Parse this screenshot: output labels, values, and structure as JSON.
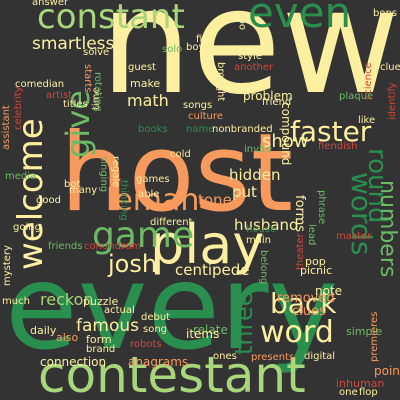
{
  "colors": {
    "background": "#333333",
    "cream": "#fdefa0",
    "orange": "#f89a5d",
    "green_dark": "#2a8e4e",
    "green_mid": "#6cbb64",
    "green_light": "#a8d67b",
    "yellow": "#e0e38a",
    "red": "#d2453a"
  },
  "words": [
    {
      "text": "new",
      "color": "#fdefa0",
      "rot": 0
    },
    {
      "text": "host",
      "color": "#f89a5d",
      "rot": 0
    },
    {
      "text": "every",
      "color": "#2a8e4e",
      "rot": 0
    },
    {
      "text": "contestant",
      "color": "#a8d67b",
      "rot": 0
    },
    {
      "text": "constant",
      "color": "#a8d67b",
      "rot": 0
    },
    {
      "text": "even",
      "color": "#2a8e4e",
      "rot": 0
    },
    {
      "text": "welcome",
      "color": "#fdefa0",
      "rot": -90
    },
    {
      "text": "play",
      "color": "#fdefa0",
      "rot": 0
    },
    {
      "text": "game",
      "color": "#6cbb64",
      "rot": 0
    },
    {
      "text": "give",
      "color": "#6cbb64",
      "rot": -90
    },
    {
      "text": "leman",
      "color": "#f89a5d",
      "rot": 0
    },
    {
      "text": "faster",
      "color": "#fdefa0",
      "rot": 0
    },
    {
      "text": "words",
      "color": "#2a8e4e",
      "rot": 90
    },
    {
      "text": "round",
      "color": "#2a8e4e",
      "rot": 90
    },
    {
      "text": "numbers",
      "color": "#6cbb64",
      "rot": 90
    },
    {
      "text": "back",
      "color": "#fdefa0",
      "rot": 0
    },
    {
      "text": "word",
      "color": "#fdefa0",
      "rot": 0
    },
    {
      "text": "three",
      "color": "#2a8e4e",
      "rot": -90
    },
    {
      "text": "josh",
      "color": "#fdefa0",
      "rot": 0
    },
    {
      "text": "smartless",
      "color": "#fdefa0",
      "rot": 0
    },
    {
      "text": "show",
      "color": "#fdefa0",
      "rot": 0
    },
    {
      "text": "math",
      "color": "#fdefa0",
      "rot": 0
    },
    {
      "text": "famous",
      "color": "#fdefa0",
      "rot": 0
    },
    {
      "text": "centipede",
      "color": "#fdefa0",
      "rot": 0
    },
    {
      "text": "hidden",
      "color": "#fdefa0",
      "rot": 0
    },
    {
      "text": "put",
      "color": "#fdefa0",
      "rot": 0
    },
    {
      "text": "husband",
      "color": "#fdefa0",
      "rot": 0
    },
    {
      "text": "tone",
      "color": "#f89a5d",
      "rot": 0
    },
    {
      "text": "forms",
      "color": "#fdefa0",
      "rot": 90
    },
    {
      "text": "compound",
      "color": "#fdefa0",
      "rot": 90
    },
    {
      "text": "problem",
      "color": "#fdefa0",
      "rot": 0
    },
    {
      "text": "reckon",
      "color": "#a8d67b",
      "rot": 0
    },
    {
      "text": "removed",
      "color": "#f89a5d",
      "rot": 0
    },
    {
      "text": "clues",
      "color": "#f89a5d",
      "rot": 0
    },
    {
      "text": "relate",
      "color": "#6cbb64",
      "rot": 0
    },
    {
      "text": "note",
      "color": "#fdefa0",
      "rot": 0
    },
    {
      "text": "items",
      "color": "#fdefa0",
      "rot": 0
    },
    {
      "text": "connection",
      "color": "#fdefa0",
      "rot": 0
    },
    {
      "text": "anagrams",
      "color": "#f89a5d",
      "rot": 0
    },
    {
      "text": "point",
      "color": "#f89a5d",
      "rot": 0
    },
    {
      "text": "simple",
      "color": "#6cbb64",
      "rot": 0
    },
    {
      "text": "make",
      "color": "#fdefa0",
      "rot": 0
    },
    {
      "text": "brought",
      "color": "#fdefa0",
      "rot": 90
    },
    {
      "text": "culture",
      "color": "#f89a5d",
      "rot": 0
    },
    {
      "text": "books",
      "color": "#2a8e4e",
      "rot": 0
    },
    {
      "text": "name",
      "color": "#2a8e4e",
      "rot": 0
    },
    {
      "text": "games",
      "color": "#fdefa0",
      "rot": 0
    },
    {
      "text": "able",
      "color": "#fdefa0",
      "rot": 0
    },
    {
      "text": "different",
      "color": "#fdefa0",
      "rot": 0
    },
    {
      "text": "friend",
      "color": "#fdefa0",
      "rot": 0
    },
    {
      "text": "nonbranded",
      "color": "#fdefa0",
      "rot": 0
    },
    {
      "text": "invite",
      "color": "#6cbb64",
      "rot": 0
    },
    {
      "text": "fiendish",
      "color": "#d2453a",
      "rot": 0
    },
    {
      "text": "house",
      "color": "#2a8e4e",
      "rot": 0
    },
    {
      "text": "main",
      "color": "#fdefa0",
      "rot": 0
    },
    {
      "text": "master",
      "color": "#d2453a",
      "rot": 0
    },
    {
      "text": "phrase",
      "color": "#6cbb64",
      "rot": 90
    },
    {
      "text": "lead",
      "color": "#6cbb64",
      "rot": 90
    },
    {
      "text": "theater",
      "color": "#d2453a",
      "rot": -90
    },
    {
      "text": "belong",
      "color": "#6cbb64",
      "rot": 90
    },
    {
      "text": "pop",
      "color": "#fdefa0",
      "rot": 0
    },
    {
      "text": "picnic",
      "color": "#fdefa0",
      "rot": 0
    },
    {
      "text": "puzzle",
      "color": "#fdefa0",
      "rot": 0
    },
    {
      "text": "daily",
      "color": "#fdefa0",
      "rot": 0
    },
    {
      "text": "also",
      "color": "#f89a5d",
      "rot": 0
    },
    {
      "text": "form",
      "color": "#fdefa0",
      "rot": 0
    },
    {
      "text": "brand",
      "color": "#fdefa0",
      "rot": 0
    },
    {
      "text": "robots",
      "color": "#d2453a",
      "rot": 0
    },
    {
      "text": "song",
      "color": "#fdefa0",
      "rot": 0
    },
    {
      "text": "ones",
      "color": "#fdefa0",
      "rot": 0
    },
    {
      "text": "presents",
      "color": "#f89a5d",
      "rot": 0
    },
    {
      "text": "digital",
      "color": "#fdefa0",
      "rot": 0
    },
    {
      "text": "inhuman",
      "color": "#d2453a",
      "rot": 0
    },
    {
      "text": "premieres",
      "color": "#f89a5d",
      "rot": -90
    },
    {
      "text": "one",
      "color": "#fdefa0",
      "rot": 0
    },
    {
      "text": "flop",
      "color": "#fdefa0",
      "rot": 0
    },
    {
      "text": "debut",
      "color": "#fdefa0",
      "rot": 0
    },
    {
      "text": "actual",
      "color": "#fdefa0",
      "rot": 0
    },
    {
      "text": "mystery",
      "color": "#fdefa0",
      "rot": -90
    },
    {
      "text": "much",
      "color": "#fdefa0",
      "rot": 0
    },
    {
      "text": "friends",
      "color": "#6cbb64",
      "rot": 0
    },
    {
      "text": "conundrum",
      "color": "#d2453a",
      "rot": 0
    },
    {
      "text": "going",
      "color": "#fdefa0",
      "rot": 0
    },
    {
      "text": "media",
      "color": "#6cbb64",
      "rot": 0
    },
    {
      "text": "good",
      "color": "#fdefa0",
      "rot": 0
    },
    {
      "text": "bot",
      "color": "#fdefa0",
      "rot": 0
    },
    {
      "text": "many",
      "color": "#fdefa0",
      "rot": 0
    },
    {
      "text": "singing",
      "color": "#6cbb64",
      "rot": 90
    },
    {
      "text": "regale",
      "color": "#fdefa0",
      "rot": 90
    },
    {
      "text": "thinking",
      "color": "#2a8e4e",
      "rot": 90
    },
    {
      "text": "cold",
      "color": "#fdefa0",
      "rot": 0
    },
    {
      "text": "titles",
      "color": "#fdefa0",
      "rot": 0
    },
    {
      "text": "assistant",
      "color": "#f89a5d",
      "rot": -90
    },
    {
      "text": "comedian",
      "color": "#fdefa0",
      "rot": 0
    },
    {
      "text": "answer",
      "color": "#fdefa0",
      "rot": 0
    },
    {
      "text": "solve",
      "color": "#fdefa0",
      "rot": 0
    },
    {
      "text": "guest",
      "color": "#fdefa0",
      "rot": 0
    },
    {
      "text": "style",
      "color": "#fdefa0",
      "rot": 0
    },
    {
      "text": "another",
      "color": "#d2453a",
      "rot": 0
    },
    {
      "text": "five",
      "color": "#fdefa0",
      "rot": 0
    },
    {
      "text": "boys",
      "color": "#fdefa0",
      "rot": 0
    },
    {
      "text": "solo",
      "color": "#6cbb64",
      "rot": 0
    },
    {
      "text": "odd",
      "color": "#fdefa0",
      "rot": -90
    },
    {
      "text": "bops",
      "color": "#fdefa0",
      "rot": 0
    },
    {
      "text": "clue",
      "color": "#fdefa0",
      "rot": 0
    },
    {
      "text": "science",
      "color": "#d2453a",
      "rot": -90
    },
    {
      "text": "identify",
      "color": "#d2453a",
      "rot": -90
    },
    {
      "text": "like",
      "color": "#fdefa0",
      "rot": 0
    },
    {
      "text": "plaque",
      "color": "#6cbb64",
      "rot": 0
    },
    {
      "text": "time",
      "color": "#fdefa0",
      "rot": -90
    },
    {
      "text": "artist",
      "color": "#d2453a",
      "rot": 0
    },
    {
      "text": "celebrity",
      "color": "#d2453a",
      "rot": -90
    },
    {
      "text": "songs",
      "color": "#fdefa0",
      "rot": 0
    },
    {
      "text": "rotating",
      "color": "#6cbb64",
      "rot": 90
    },
    {
      "text": "starts",
      "color": "#f89a5d",
      "rot": 90
    }
  ]
}
